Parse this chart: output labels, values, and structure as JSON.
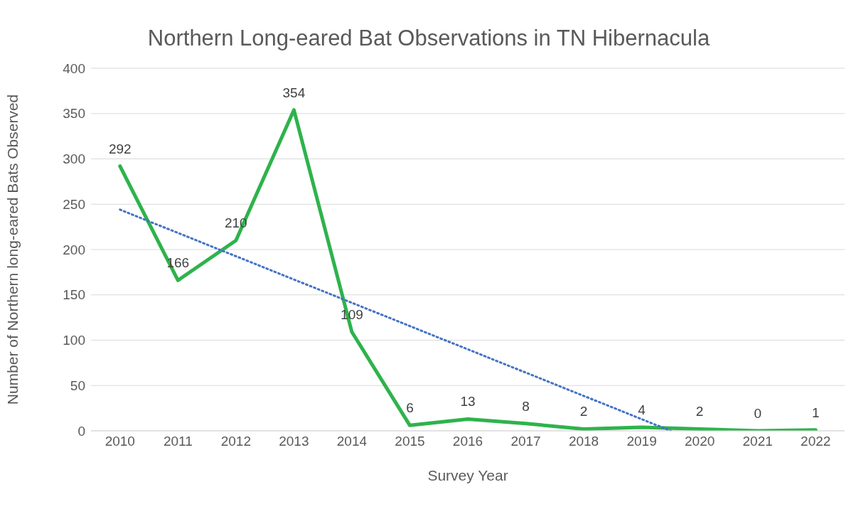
{
  "chart_data": {
    "type": "line",
    "title": "Northern Long-eared Bat Observations in TN Hibernacula",
    "xlabel": "Survey Year",
    "ylabel": "Number of Northern long-eared Bats Observed",
    "x": [
      2010,
      2011,
      2012,
      2013,
      2014,
      2015,
      2016,
      2017,
      2018,
      2019,
      2020,
      2021,
      2022
    ],
    "series": [
      {
        "color": "#2eb34c",
        "values": [
          292,
          166,
          210,
          354,
          109,
          6,
          13,
          8,
          2,
          4,
          2,
          0,
          1
        ],
        "value_labels": [
          "292",
          "166",
          "210",
          "354",
          "109",
          "6",
          "13",
          "8",
          "2",
          "4",
          "2",
          "0",
          "1"
        ]
      },
      {
        "color": "#4472c4",
        "line_style": "dotted",
        "x": [
          2010,
          2019.5
        ],
        "values": [
          244,
          0
        ]
      }
    ],
    "xlim": [
      2009.5,
      2022.5
    ],
    "xticks": [
      2010,
      2011,
      2012,
      2013,
      2014,
      2015,
      2016,
      2017,
      2018,
      2019,
      2020,
      2021,
      2022
    ],
    "ylim": [
      0,
      400
    ],
    "yticks": [
      0,
      50,
      100,
      150,
      200,
      250,
      300,
      350,
      400
    ],
    "grid": "y",
    "marker": "none"
  }
}
